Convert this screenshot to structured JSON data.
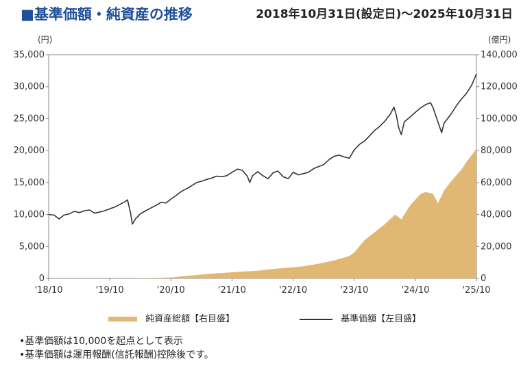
{
  "title": "■基準価額・純資産の推移",
  "period": "2018年10月31日(設定日)～2025年10月31日",
  "legend": {
    "area_label": "純資産総額【右目盛】",
    "line_label": "基準価額【左目盛】"
  },
  "notes": [
    "•基準価額は10,000を起点として表示",
    "•基準価額は運用報酬(信託報酬)控除後です。"
  ],
  "colors": {
    "title": "#1f4e9c",
    "area": "#e1b873",
    "line": "#333333",
    "axis": "#888888"
  },
  "chart_data": {
    "type": "line",
    "left_axis": {
      "unit_label": "(円)",
      "ylim": [
        0,
        35000
      ],
      "ticks": [
        "0",
        "5,000",
        "10,000",
        "15,000",
        "20,000",
        "25,000",
        "30,000",
        "35,000"
      ]
    },
    "right_axis": {
      "unit_label": "(億円)",
      "ylim": [
        0,
        140000
      ],
      "ticks": [
        "0",
        "20,000",
        "40,000",
        "60,000",
        "80,000",
        "100,000",
        "120,000",
        "140,000"
      ]
    },
    "x_ticks": [
      "'18/10",
      "'19/10",
      "'20/10",
      "'21/10",
      "'22/10",
      "'23/10",
      "'24/10",
      "'25/10"
    ],
    "xlim": [
      2018.83,
      2025.83
    ],
    "series": [
      {
        "name": "基準価額【左目盛】",
        "axis": "left",
        "points": [
          [
            2018.83,
            10000
          ],
          [
            2018.92,
            9900
          ],
          [
            2019.0,
            9300
          ],
          [
            2019.08,
            9900
          ],
          [
            2019.17,
            10100
          ],
          [
            2019.25,
            10500
          ],
          [
            2019.33,
            10300
          ],
          [
            2019.42,
            10600
          ],
          [
            2019.5,
            10700
          ],
          [
            2019.58,
            10200
          ],
          [
            2019.67,
            10400
          ],
          [
            2019.75,
            10600
          ],
          [
            2019.83,
            10900
          ],
          [
            2019.92,
            11200
          ],
          [
            2020.0,
            11600
          ],
          [
            2020.08,
            12000
          ],
          [
            2020.12,
            12300
          ],
          [
            2020.17,
            10200
          ],
          [
            2020.2,
            8500
          ],
          [
            2020.25,
            9300
          ],
          [
            2020.33,
            10100
          ],
          [
            2020.42,
            10600
          ],
          [
            2020.5,
            11000
          ],
          [
            2020.58,
            11400
          ],
          [
            2020.67,
            11900
          ],
          [
            2020.75,
            11800
          ],
          [
            2020.83,
            12400
          ],
          [
            2020.92,
            13000
          ],
          [
            2021.0,
            13600
          ],
          [
            2021.08,
            14000
          ],
          [
            2021.17,
            14500
          ],
          [
            2021.25,
            15000
          ],
          [
            2021.33,
            15200
          ],
          [
            2021.42,
            15500
          ],
          [
            2021.5,
            15700
          ],
          [
            2021.58,
            16000
          ],
          [
            2021.67,
            15900
          ],
          [
            2021.75,
            16100
          ],
          [
            2021.83,
            16600
          ],
          [
            2021.92,
            17100
          ],
          [
            2022.0,
            16900
          ],
          [
            2022.08,
            16000
          ],
          [
            2022.12,
            15000
          ],
          [
            2022.17,
            16100
          ],
          [
            2022.25,
            16700
          ],
          [
            2022.33,
            16100
          ],
          [
            2022.42,
            15600
          ],
          [
            2022.5,
            16500
          ],
          [
            2022.58,
            16800
          ],
          [
            2022.67,
            15900
          ],
          [
            2022.75,
            15600
          ],
          [
            2022.83,
            16600
          ],
          [
            2022.92,
            16200
          ],
          [
            2023.0,
            16400
          ],
          [
            2023.08,
            16600
          ],
          [
            2023.17,
            17200
          ],
          [
            2023.25,
            17500
          ],
          [
            2023.33,
            17800
          ],
          [
            2023.42,
            18600
          ],
          [
            2023.5,
            19100
          ],
          [
            2023.58,
            19300
          ],
          [
            2023.67,
            19000
          ],
          [
            2023.75,
            18800
          ],
          [
            2023.83,
            20100
          ],
          [
            2023.92,
            21000
          ],
          [
            2024.0,
            21500
          ],
          [
            2024.08,
            22300
          ],
          [
            2024.17,
            23200
          ],
          [
            2024.25,
            23800
          ],
          [
            2024.33,
            24600
          ],
          [
            2024.42,
            25700
          ],
          [
            2024.48,
            26800
          ],
          [
            2024.52,
            25500
          ],
          [
            2024.56,
            23500
          ],
          [
            2024.6,
            22500
          ],
          [
            2024.65,
            24500
          ],
          [
            2024.75,
            25300
          ],
          [
            2024.83,
            26000
          ],
          [
            2024.92,
            26700
          ],
          [
            2025.0,
            27200
          ],
          [
            2025.08,
            27500
          ],
          [
            2025.12,
            26700
          ],
          [
            2025.2,
            24500
          ],
          [
            2025.26,
            22800
          ],
          [
            2025.3,
            24300
          ],
          [
            2025.42,
            25800
          ],
          [
            2025.5,
            27000
          ],
          [
            2025.58,
            28000
          ],
          [
            2025.67,
            29000
          ],
          [
            2025.75,
            30200
          ],
          [
            2025.83,
            32000
          ]
        ]
      },
      {
        "name": "純資産総額【右目盛】",
        "axis": "right",
        "points": [
          [
            2018.83,
            0
          ],
          [
            2019.83,
            0
          ],
          [
            2020.5,
            200
          ],
          [
            2020.83,
            600
          ],
          [
            2021.0,
            1300
          ],
          [
            2021.5,
            3000
          ],
          [
            2021.83,
            3800
          ],
          [
            2022.0,
            4300
          ],
          [
            2022.25,
            4800
          ],
          [
            2022.5,
            5900
          ],
          [
            2022.83,
            6900
          ],
          [
            2023.0,
            7600
          ],
          [
            2023.25,
            9200
          ],
          [
            2023.5,
            11200
          ],
          [
            2023.75,
            14000
          ],
          [
            2023.83,
            16200
          ],
          [
            2024.0,
            24000
          ],
          [
            2024.17,
            29000
          ],
          [
            2024.33,
            34000
          ],
          [
            2024.5,
            40000
          ],
          [
            2024.6,
            37000
          ],
          [
            2024.75,
            46000
          ],
          [
            2024.92,
            53000
          ],
          [
            2025.0,
            54000
          ],
          [
            2025.12,
            53000
          ],
          [
            2025.2,
            47000
          ],
          [
            2025.3,
            55000
          ],
          [
            2025.42,
            61000
          ],
          [
            2025.58,
            68000
          ],
          [
            2025.67,
            73000
          ],
          [
            2025.75,
            77000
          ],
          [
            2025.83,
            81000
          ]
        ]
      }
    ]
  }
}
